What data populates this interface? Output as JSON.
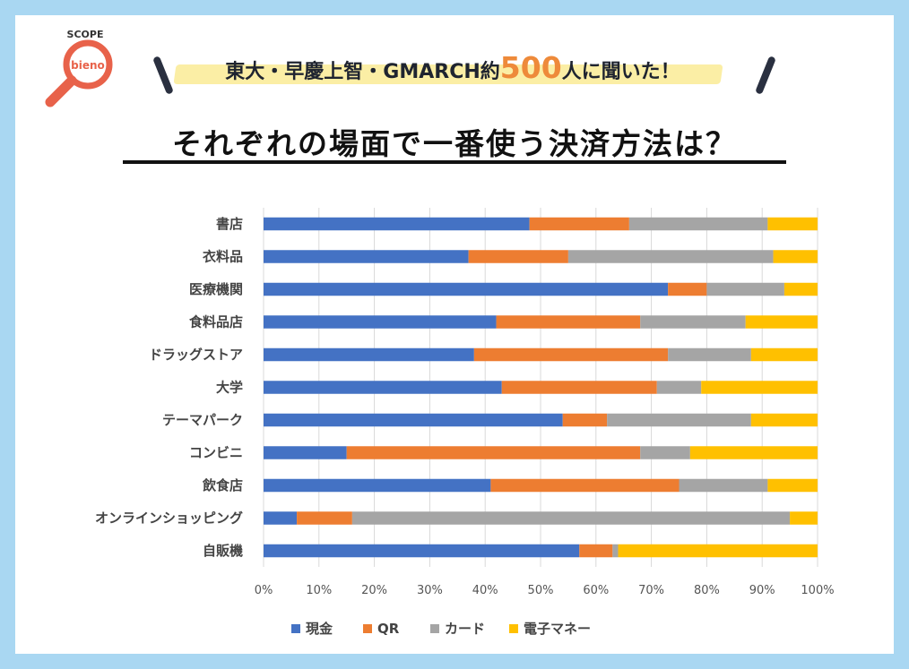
{
  "header": {
    "logo_text_top": "SCOPE",
    "logo_text_center": "bieno",
    "subtitle_before": "東大・早慶上智・GMARCH約",
    "subtitle_number": "500",
    "subtitle_after": "人に聞いた！",
    "title": "それぞれの場面で一番使う決済方法は？"
  },
  "colors": {
    "cash": "#4472c4",
    "qr": "#ed7d31",
    "card": "#a5a5a5",
    "emoney": "#ffc000",
    "accent": "#ee8a3a",
    "logo": "#e8624a"
  },
  "chart_data": {
    "type": "bar",
    "orientation": "horizontal",
    "stacked": "percent",
    "title": "それぞれの場面で一番使う決済方法は？",
    "categories": [
      "書店",
      "衣料品",
      "医療機関",
      "食料品店",
      "ドラッグストア",
      "大学",
      "テーマパーク",
      "コンビニ",
      "飲食店",
      "オンラインショッピング",
      "自販機"
    ],
    "series": [
      {
        "name": "現金",
        "color": "#4472c4",
        "values": [
          48,
          37,
          73,
          42,
          38,
          43,
          54,
          15,
          41,
          6,
          57
        ]
      },
      {
        "name": "QR",
        "color": "#ed7d31",
        "values": [
          18,
          18,
          7,
          26,
          35,
          28,
          8,
          53,
          34,
          10,
          6
        ]
      },
      {
        "name": "カード",
        "color": "#a5a5a5",
        "values": [
          25,
          37,
          14,
          19,
          15,
          8,
          26,
          9,
          16,
          79,
          1
        ]
      },
      {
        "name": "電子マネー",
        "color": "#ffc000",
        "values": [
          9,
          8,
          6,
          13,
          12,
          21,
          12,
          23,
          9,
          5,
          36
        ]
      }
    ],
    "xticks": [
      "0%",
      "10%",
      "20%",
      "30%",
      "40%",
      "50%",
      "60%",
      "70%",
      "80%",
      "90%",
      "100%"
    ],
    "xlim": [
      0,
      100
    ],
    "grid": true,
    "legend": "bottom"
  }
}
